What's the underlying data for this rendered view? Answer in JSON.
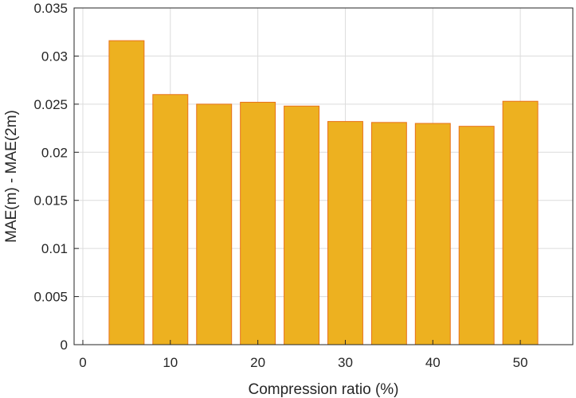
{
  "chart_data": {
    "type": "bar",
    "x": [
      5,
      10,
      15,
      20,
      25,
      30,
      35,
      40,
      45,
      50
    ],
    "values": [
      0.0316,
      0.026,
      0.025,
      0.0252,
      0.0248,
      0.0232,
      0.0231,
      0.023,
      0.0227,
      0.0253
    ],
    "xlabel": "Compression ratio (%)",
    "ylabel": "MAE(m) - MAE(2m)",
    "xlim": [
      -1,
      56
    ],
    "ylim": [
      0,
      0.035
    ],
    "xticks": [
      0,
      10,
      20,
      30,
      40,
      50
    ],
    "xtick_labels": [
      "0",
      "10",
      "20",
      "30",
      "40",
      "50"
    ],
    "yticks": [
      0,
      0.005,
      0.01,
      0.015,
      0.02,
      0.025,
      0.03,
      0.035
    ],
    "ytick_labels": [
      "0",
      "0.005",
      "0.01",
      "0.015",
      "0.02",
      "0.025",
      "0.03",
      "0.035"
    ],
    "grid": true,
    "bar_color": "#EDB120",
    "bar_edge_color": "#E8711A"
  }
}
